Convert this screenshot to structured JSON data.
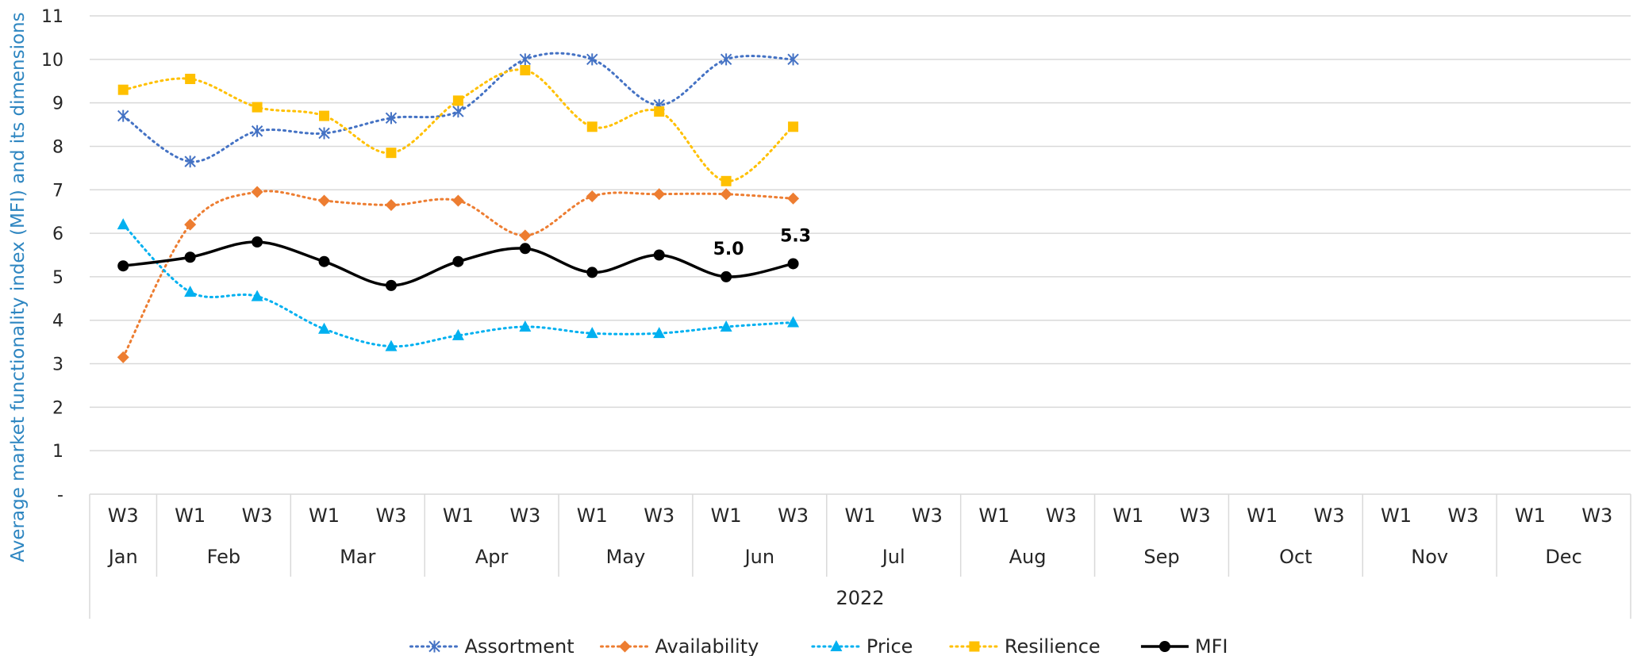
{
  "chart_data": {
    "type": "line",
    "ylabel": "Average market functionality index (MFI) and its dimensions",
    "ylim": [
      0,
      11
    ],
    "y_ticks": [
      "-",
      "1",
      "2",
      "3",
      "4",
      "5",
      "6",
      "7",
      "8",
      "9",
      "10",
      "11"
    ],
    "year_label": "2022",
    "months": [
      {
        "label": "Jan",
        "weeks": [
          "W3"
        ]
      },
      {
        "label": "Feb",
        "weeks": [
          "W1",
          "W3"
        ]
      },
      {
        "label": "Mar",
        "weeks": [
          "W1",
          "W3"
        ]
      },
      {
        "label": "Apr",
        "weeks": [
          "W1",
          "W3"
        ]
      },
      {
        "label": "May",
        "weeks": [
          "W1",
          "W3"
        ]
      },
      {
        "label": "Jun",
        "weeks": [
          "W1",
          "W3"
        ]
      },
      {
        "label": "Jul",
        "weeks": [
          "W1",
          "W3"
        ]
      },
      {
        "label": "Aug",
        "weeks": [
          "W1",
          "W3"
        ]
      },
      {
        "label": "Sep",
        "weeks": [
          "W1",
          "W3"
        ]
      },
      {
        "label": "Oct",
        "weeks": [
          "W1",
          "W3"
        ]
      },
      {
        "label": "Nov",
        "weeks": [
          "W1",
          "W3"
        ]
      },
      {
        "label": "Dec",
        "weeks": [
          "W1",
          "W3"
        ]
      }
    ],
    "grid": true,
    "legend_position": "bottom",
    "series": [
      {
        "name": "Assortment",
        "color": "#4472C4",
        "marker": "asterisk",
        "style": "dotted",
        "values": [
          8.7,
          7.65,
          8.35,
          8.3,
          8.65,
          8.8,
          10.0,
          10.0,
          8.95,
          10.0,
          10.0
        ]
      },
      {
        "name": "Availability",
        "color": "#ED7D31",
        "marker": "diamond",
        "style": "dotted",
        "values": [
          3.15,
          6.2,
          6.95,
          6.75,
          6.65,
          6.75,
          5.95,
          6.85,
          6.9,
          6.9,
          6.8
        ]
      },
      {
        "name": "Price",
        "color": "#00B0F0",
        "marker": "triangle",
        "style": "dotted",
        "values": [
          6.2,
          4.65,
          4.55,
          3.8,
          3.4,
          3.65,
          3.85,
          3.7,
          3.7,
          3.85,
          3.95
        ]
      },
      {
        "name": "Resilience",
        "color": "#FFC000",
        "marker": "square",
        "style": "dotted",
        "values": [
          9.3,
          9.55,
          8.9,
          8.7,
          7.85,
          9.05,
          9.75,
          8.45,
          8.8,
          7.2,
          8.45
        ]
      },
      {
        "name": "MFI",
        "color": "#000000",
        "marker": "circle",
        "style": "solid",
        "values": [
          5.25,
          5.45,
          5.8,
          5.35,
          4.8,
          5.35,
          5.65,
          5.1,
          5.5,
          5.0,
          5.3
        ]
      }
    ],
    "annotations": [
      {
        "series": "MFI",
        "index": 9,
        "text": "5.0"
      },
      {
        "series": "MFI",
        "index": 10,
        "text": "5.3"
      }
    ]
  }
}
